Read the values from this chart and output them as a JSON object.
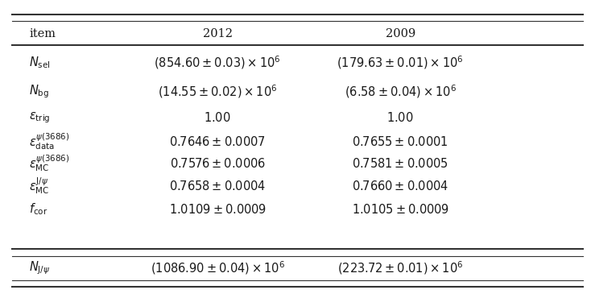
{
  "headers": [
    "item",
    "2012",
    "2009"
  ],
  "rows": [
    [
      "$N_{\\mathrm{sel}}$",
      "$(854.60\\pm0.03)\\times10^{6}$",
      "$(179.63\\pm0.01)\\times10^{6}$"
    ],
    [
      "$N_{\\mathrm{bg}}$",
      "$(14.55\\pm0.02)\\times10^{6}$",
      "$(6.58\\pm0.04)\\times10^{6}$"
    ],
    [
      "$\\epsilon_{\\mathrm{trig}}$",
      "$1.00$",
      "$1.00$"
    ],
    [
      "$\\epsilon_{\\mathrm{data}}^{\\psi(3686)}$",
      "$0.7646\\pm0.0007$",
      "$0.7655\\pm0.0001$"
    ],
    [
      "$\\epsilon_{\\mathrm{MC}}^{\\psi(3686)}$",
      "$0.7576\\pm0.0006$",
      "$0.7581\\pm0.0005$"
    ],
    [
      "$\\epsilon_{\\mathrm{MC}}^{\\mathrm{J}/\\psi}$",
      "$0.7658\\pm0.0004$",
      "$0.7660\\pm0.0004$"
    ],
    [
      "$f_{\\mathrm{cor}}$",
      "$1.0109\\pm0.0009$",
      "$1.0105\\pm0.0009$"
    ]
  ],
  "last_row": [
    "$N_{\\mathrm{J}/\\psi}$",
    "$(1086.90\\pm0.04)\\times10^{6}$",
    "$(223.72\\pm0.01)\\times10^{6}$"
  ],
  "bg_color": "#ffffff",
  "text_color": "#1a1a1a",
  "line_color": "#333333",
  "fontsize": 10.5
}
